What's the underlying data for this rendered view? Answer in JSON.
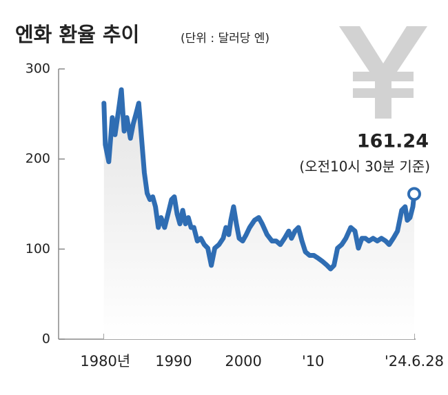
{
  "chart_data": {
    "type": "line",
    "title": "엔화 환율 추이",
    "subtitle": "(단위 : 달러당 엔)",
    "annotation": "(오전10시 30분 기준)",
    "color": "#2f6db3",
    "x": [
      1980,
      1980.2,
      1980.7,
      1981.2,
      1981.6,
      1982.1,
      1982.5,
      1982.9,
      1983.3,
      1983.8,
      1984.2,
      1984.6,
      1985.0,
      1985.4,
      1985.8,
      1986.2,
      1986.6,
      1987.0,
      1987.4,
      1987.8,
      1988.2,
      1988.7,
      1989.2,
      1989.7,
      1990.1,
      1990.5,
      1990.9,
      1991.3,
      1991.7,
      1992.1,
      1992.5,
      1992.9,
      1993.4,
      1993.9,
      1994.4,
      1994.9,
      1995.4,
      1995.9,
      1996.5,
      1997.1,
      1997.5,
      1997.9,
      1998.2,
      1998.6,
      1999.0,
      1999.4,
      1999.9,
      2000.4,
      2000.9,
      2001.6,
      2002.2,
      2002.7,
      2003.4,
      2004.1,
      2004.7,
      2005.3,
      2005.9,
      2006.5,
      2006.9,
      2007.4,
      2007.9,
      2008.4,
      2008.9,
      2009.5,
      2010.1,
      2010.7,
      2011.4,
      2012.0,
      2012.5,
      2013.0,
      2013.5,
      2014.1,
      2014.7,
      2015.4,
      2016.0,
      2016.5,
      2017.0,
      2017.5,
      2018.0,
      2018.6,
      2019.2,
      2019.8,
      2020.4,
      2020.9,
      2021.5,
      2022.1,
      2022.7,
      2023.2,
      2023.5,
      2023.9,
      2024.3,
      2024.5
    ],
    "values": [
      262,
      216,
      197,
      246,
      227,
      254,
      277,
      231,
      246,
      223,
      239,
      250,
      262,
      223,
      185,
      162,
      155,
      158,
      147,
      124,
      135,
      124,
      139,
      155,
      158,
      139,
      128,
      143,
      128,
      135,
      124,
      124,
      109,
      112,
      105,
      101,
      82,
      101,
      105,
      112,
      124,
      116,
      132,
      147,
      128,
      112,
      109,
      116,
      124,
      132,
      135,
      128,
      116,
      109,
      109,
      105,
      112,
      120,
      112,
      120,
      124,
      109,
      97,
      93,
      93,
      90,
      86,
      82,
      78,
      82,
      101,
      105,
      112,
      124,
      120,
      101,
      112,
      112,
      109,
      112,
      109,
      112,
      109,
      105,
      112,
      120,
      143,
      147,
      132,
      135,
      147,
      161.24
    ],
    "xlim": [
      1973.5,
      2024.7
    ],
    "xticks": [
      {
        "value": 1980,
        "label": "1980년"
      },
      1990,
      2000,
      {
        "value": 2010,
        "label": "'10"
      },
      {
        "value": 2024.5,
        "label": "'24.6.28"
      }
    ],
    "ylim": [
      0,
      300
    ],
    "yticks": [
      0,
      100,
      200,
      300
    ]
  }
}
